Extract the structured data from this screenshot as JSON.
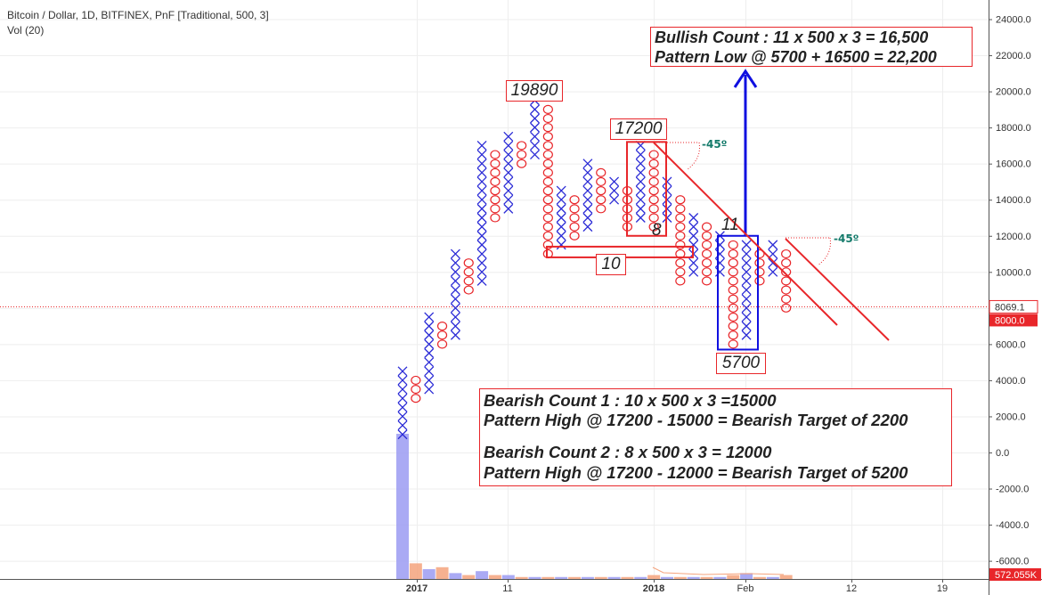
{
  "header": {
    "title": "Bitcoin / Dollar, 1D, BITFINEX, PnF [Traditional, 500, 3]",
    "indicator": "Vol (20)"
  },
  "colors": {
    "x_color": "#2b2bd6",
    "o_color": "#e8262a",
    "annotation_red": "#e8262a",
    "arrow_blue": "#1010e0",
    "angle_green": "#137a6a",
    "volume_blue": "#9b9bf2",
    "volume_orange": "#f5a37c",
    "price_line_red": "#e8262a"
  },
  "axis": {
    "y_ticks": [
      "24000.0",
      "22000.0",
      "20000.0",
      "18000.0",
      "16000.0",
      "14000.0",
      "12000.0",
      "10000.0",
      "6000.0",
      "4000.0",
      "2000.0",
      "0.0",
      "-2000.0",
      "-4000.0",
      "-6000.0"
    ],
    "price_tag": "8069.1",
    "box_tag": "8000.0",
    "volume_tag": "572.055K",
    "x_ticks": [
      {
        "label": "2017",
        "bold": true
      },
      {
        "label": "11",
        "bold": false
      },
      {
        "label": "2018",
        "bold": true
      },
      {
        "label": "Feb",
        "bold": false
      },
      {
        "label": "12",
        "bold": false
      },
      {
        "label": "19",
        "bold": false
      }
    ]
  },
  "annotations": {
    "bullish_line1": "Bullish Count : 11 x 500 x 3 = 16,500",
    "bullish_line2": "Pattern Low @ 5700 + 16500 = 22,200",
    "bearish_line1": "Bearish Count 1 : 10 x 500 x 3 =15000",
    "bearish_line2": "Pattern High @ 17200 - 15000 =  Bearish Target of 2200",
    "bearish_line3": "Bearish Count 2 : 8 x 500 x 3 = 12000",
    "bearish_line4": "Pattern High @ 17200 - 12000 = Bearish Target of 5200",
    "label_19890": "19890",
    "label_17200": "17200",
    "label_10": "10",
    "label_8": "8",
    "label_11": "11",
    "label_5700": "5700",
    "angle1": "-45º",
    "angle2": "-45º"
  },
  "chart_data": {
    "type": "point-and-figure",
    "box_size": 500,
    "reversal": 3,
    "ylim": [
      -6800,
      25000
    ],
    "last_price": 8069.1,
    "columns": [
      {
        "type": "X",
        "low": 1000,
        "high": 4500
      },
      {
        "type": "O",
        "low": 3000,
        "high": 4000
      },
      {
        "type": "X",
        "low": 3500,
        "high": 7500
      },
      {
        "type": "O",
        "low": 6000,
        "high": 7000
      },
      {
        "type": "X",
        "low": 6500,
        "high": 11000
      },
      {
        "type": "O",
        "low": 9000,
        "high": 10500
      },
      {
        "type": "X",
        "low": 9500,
        "high": 17000
      },
      {
        "type": "O",
        "low": 13000,
        "high": 16500
      },
      {
        "type": "X",
        "low": 13500,
        "high": 17500
      },
      {
        "type": "O",
        "low": 16000,
        "high": 17000
      },
      {
        "type": "X",
        "low": 16500,
        "high": 19500
      },
      {
        "type": "O",
        "low": 11000,
        "high": 19000
      },
      {
        "type": "X",
        "low": 11500,
        "high": 14500
      },
      {
        "type": "O",
        "low": 12000,
        "high": 14000
      },
      {
        "type": "X",
        "low": 12500,
        "high": 16000
      },
      {
        "type": "O",
        "low": 13500,
        "high": 15500
      },
      {
        "type": "X",
        "low": 14000,
        "high": 15000
      },
      {
        "type": "O",
        "low": 12500,
        "high": 14500
      },
      {
        "type": "X",
        "low": 13000,
        "high": 17000
      },
      {
        "type": "O",
        "low": 12500,
        "high": 16500
      },
      {
        "type": "X",
        "low": 13000,
        "high": 15000
      },
      {
        "type": "O",
        "low": 9500,
        "high": 14000
      },
      {
        "type": "X",
        "low": 10000,
        "high": 13000
      },
      {
        "type": "O",
        "low": 9500,
        "high": 12500
      },
      {
        "type": "X",
        "low": 10000,
        "high": 12000
      },
      {
        "type": "O",
        "low": 6000,
        "high": 11500
      },
      {
        "type": "X",
        "low": 6500,
        "high": 11500
      },
      {
        "type": "O",
        "low": 9500,
        "high": 11000
      },
      {
        "type": "X",
        "low": 10000,
        "high": 11500
      },
      {
        "type": "O",
        "low": 8000,
        "high": 11000
      }
    ],
    "volume": [
      100,
      8,
      5,
      6,
      3,
      2,
      4,
      2,
      2,
      1,
      1,
      1,
      1,
      1,
      1,
      1,
      1,
      1,
      1,
      2,
      1,
      1,
      1,
      1,
      1,
      2,
      3,
      1,
      1,
      2
    ]
  }
}
